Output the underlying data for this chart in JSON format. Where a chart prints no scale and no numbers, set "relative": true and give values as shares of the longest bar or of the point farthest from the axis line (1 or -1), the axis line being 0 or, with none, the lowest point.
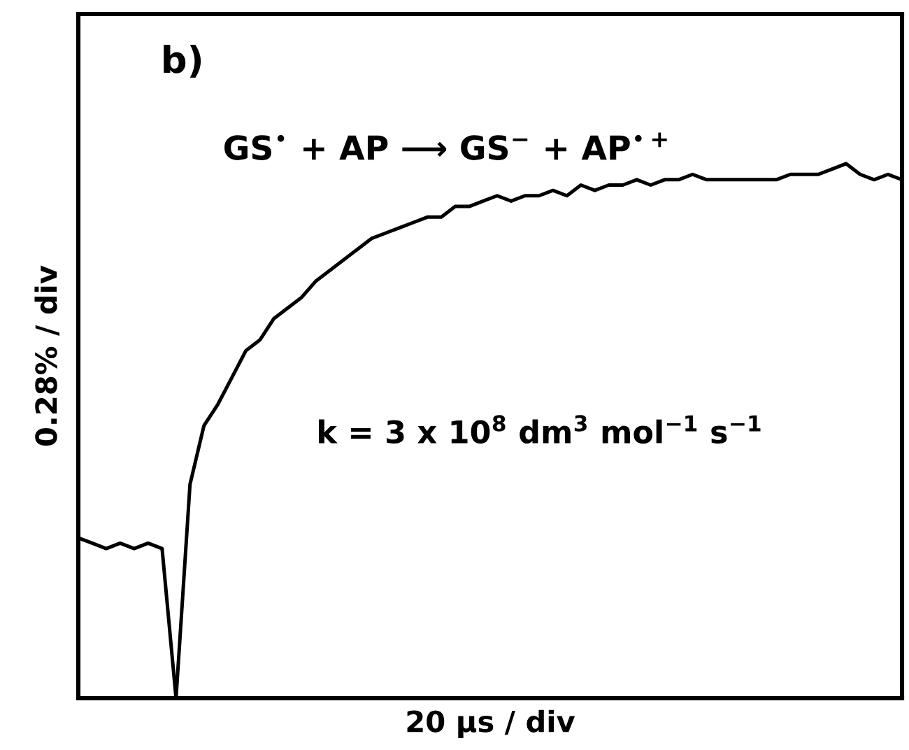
{
  "chart_data": {
    "type": "line",
    "relative": true,
    "title": "b)",
    "xlabel": "20 µs / div",
    "ylabel": "0.28% / div",
    "annotations": [
      "GS$^{•}$ + AP ⟶ GS$^{−}$ + AP$^{•+}$",
      "k = 3 x 10$^{8}$ dm$^{3}$ mol$^{−1}$ s$^{−1}$"
    ],
    "categories": [
      null,
      null,
      null,
      null,
      null,
      null,
      null,
      null,
      null,
      null,
      null,
      null,
      null,
      null,
      null,
      null,
      null,
      null,
      null,
      null,
      null,
      null,
      null,
      null,
      null,
      null,
      null,
      null,
      null,
      null,
      null,
      null,
      null,
      null,
      null,
      null,
      null,
      null,
      null,
      null,
      null,
      null,
      null,
      null,
      null,
      null,
      null,
      null,
      null,
      null,
      null,
      null,
      null,
      null,
      null,
      null,
      null,
      null,
      null,
      null
    ],
    "series": [
      {
        "color": "#000000",
        "values": [
          0.3,
          0.29,
          0.28,
          0.29,
          0.28,
          0.29,
          0.28,
          0.0,
          0.4,
          0.51,
          0.55,
          0.6,
          0.65,
          0.67,
          0.71,
          0.73,
          0.75,
          0.78,
          0.8,
          0.82,
          0.84,
          0.86,
          0.87,
          0.88,
          0.89,
          0.9,
          0.9,
          0.92,
          0.92,
          0.93,
          0.94,
          0.93,
          0.94,
          0.94,
          0.95,
          0.94,
          0.96,
          0.95,
          0.96,
          0.96,
          0.97,
          0.96,
          0.97,
          0.97,
          0.98,
          0.97,
          0.97,
          0.97,
          0.97,
          0.97,
          0.97,
          0.98,
          0.98,
          0.98,
          0.99,
          1.0,
          0.98,
          0.97,
          0.98,
          0.97
        ]
      }
    ],
    "marker": "none",
    "line_style": "solid"
  }
}
